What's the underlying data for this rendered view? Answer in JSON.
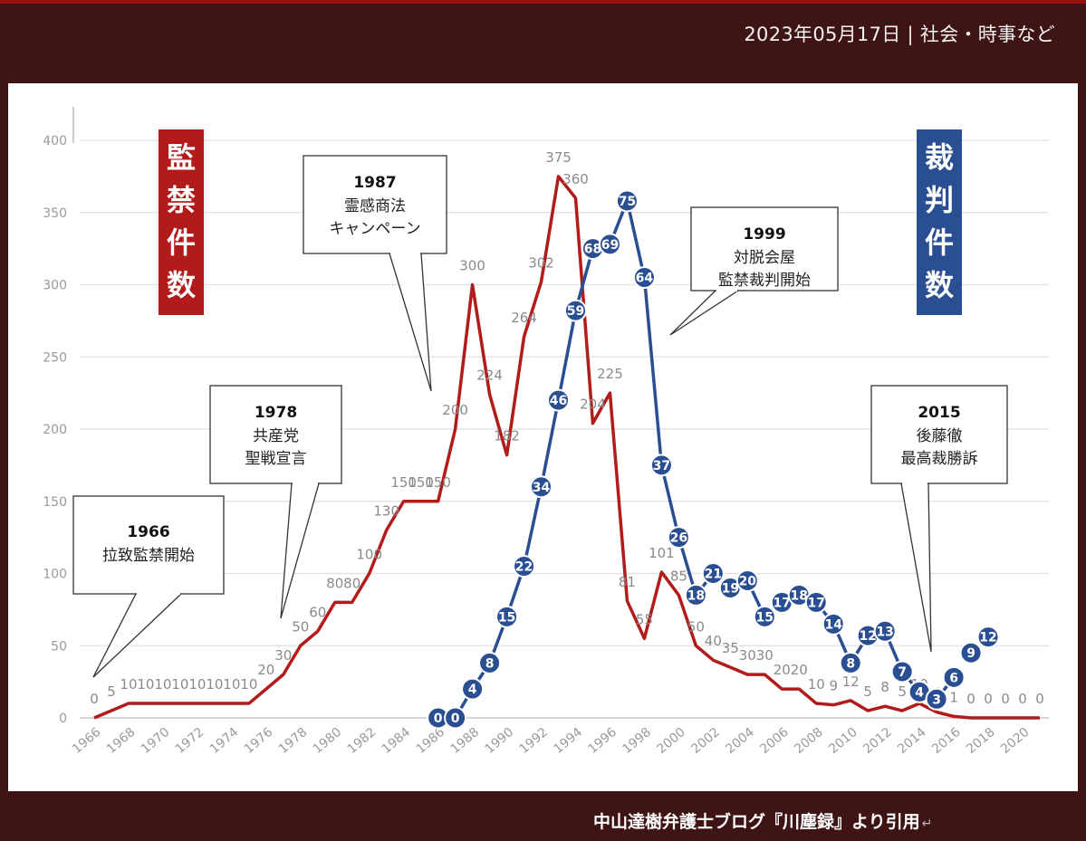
{
  "header": {
    "dateline": "2023年05月17日 | 社会・時事など"
  },
  "credit": {
    "text": "中山達樹弁護士ブログ『川塵録』より引用",
    "mark": "↵"
  },
  "chart_data": {
    "type": "line",
    "xlim": [
      1966,
      2021
    ],
    "ylim": [
      0,
      400
    ],
    "y_ticks": [
      0,
      50,
      100,
      150,
      200,
      250,
      300,
      350,
      400
    ],
    "x_ticks": [
      1966,
      1968,
      1970,
      1972,
      1974,
      1976,
      1978,
      1980,
      1982,
      1984,
      1986,
      1988,
      1990,
      1992,
      1994,
      1996,
      1998,
      2000,
      2002,
      2004,
      2006,
      2008,
      2010,
      2012,
      2014,
      2016,
      2018,
      2020
    ],
    "grid": true,
    "colors": {
      "confinement": "#b31b1b",
      "trials": "#2a4e92"
    },
    "left_label": "監禁件数",
    "right_label": "裁判件数",
    "series": [
      {
        "key": "confinement",
        "x": [
          1966,
          1967,
          1968,
          1969,
          1970,
          1971,
          1972,
          1973,
          1974,
          1975,
          1976,
          1977,
          1978,
          1979,
          1980,
          1981,
          1982,
          1983,
          1984,
          1985,
          1986,
          1987,
          1988,
          1989,
          1990,
          1991,
          1992,
          1993,
          1994,
          1995,
          1996,
          1997,
          1998,
          1999,
          2000,
          2001,
          2002,
          2003,
          2004,
          2005,
          2006,
          2007,
          2008,
          2009,
          2010,
          2011,
          2012,
          2013,
          2014,
          2015,
          2016,
          2017,
          2018,
          2019,
          2020,
          2021
        ],
        "values": [
          0,
          5,
          10,
          10,
          10,
          10,
          10,
          10,
          10,
          10,
          20,
          30,
          50,
          60,
          80,
          80,
          100,
          130,
          150,
          150,
          150,
          200,
          300,
          224,
          182,
          264,
          302,
          375,
          360,
          204,
          225,
          81,
          55,
          101,
          85,
          50,
          40,
          35,
          30,
          30,
          20,
          20,
          10,
          9,
          12,
          5,
          8,
          5,
          10,
          4,
          1,
          0,
          0,
          0,
          0,
          0
        ],
        "labels": [
          "0",
          "5",
          "10",
          "10",
          "10",
          "10",
          "10",
          "10",
          "10",
          "10",
          "20",
          "30",
          "50",
          "60",
          "80",
          "80",
          "100",
          "130",
          "150",
          "150",
          "150",
          "200",
          "300",
          "224",
          "182",
          "264",
          "302",
          "375",
          "360",
          "204",
          "225",
          "81",
          "55",
          "101",
          "85",
          "50",
          "40",
          "35",
          "30",
          "30",
          "20",
          "20",
          "10",
          "9",
          "12",
          "5",
          "8",
          "5",
          "10",
          "4",
          "1",
          "0",
          "0",
          "0",
          "0",
          "0"
        ]
      },
      {
        "key": "trials",
        "x": [
          1986,
          1987,
          1988,
          1989,
          1990,
          1991,
          1992,
          1993,
          1994,
          1995,
          1996,
          1997,
          1998,
          1999,
          2000,
          2001,
          2002,
          2003,
          2004,
          2005,
          2006,
          2007,
          2008,
          2009,
          2010,
          2011,
          2012,
          2013,
          2014,
          2015,
          2016
        ],
        "values": [
          0,
          0,
          4,
          8,
          15,
          22,
          34,
          46,
          59,
          68,
          69,
          75,
          64,
          37,
          26,
          18,
          21,
          19,
          20,
          15,
          17,
          18,
          17,
          14,
          8,
          12,
          13,
          7,
          4,
          3,
          6
        ],
        "y_plot": [
          0,
          0,
          20,
          38,
          70,
          105,
          160,
          220,
          282,
          325,
          328,
          358,
          305,
          175,
          125,
          85,
          100,
          90,
          95,
          70,
          80,
          85,
          80,
          65,
          38,
          57,
          60,
          32,
          18,
          13,
          28
        ],
        "labels": [
          "0",
          "0",
          "4",
          "8",
          "15",
          "22",
          "34",
          "46",
          "59",
          "68",
          "69",
          "75",
          "64",
          "37",
          "26",
          "18",
          "21",
          "19",
          "20",
          "15",
          "17",
          "18",
          "17",
          "14",
          "8",
          "12",
          "13",
          "7",
          "4",
          "3",
          "6"
        ],
        "extra_points": {
          "x": [
            2017,
            2018
          ],
          "y_plot": [
            45,
            56
          ],
          "labels": [
            "9",
            "12"
          ]
        }
      }
    ],
    "annotations": [
      {
        "year": "1966",
        "text": "拉致監禁開始"
      },
      {
        "year": "1978",
        "text": "共産党\n聖戦宣言"
      },
      {
        "year": "1987",
        "text": "霊感商法\nキャンペーン"
      },
      {
        "year": "1999",
        "text": "対脱会屋\n監禁裁判開始"
      },
      {
        "year": "2015",
        "text": "後藤徹\n最高裁勝訴"
      }
    ]
  }
}
